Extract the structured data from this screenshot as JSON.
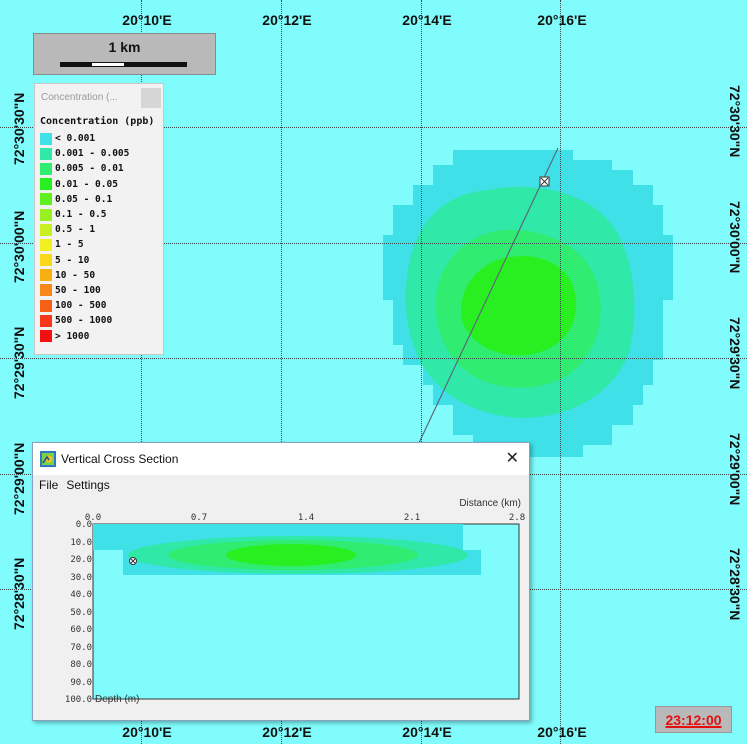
{
  "map": {
    "lon_labels": [
      "20°10'E",
      "20°12'E",
      "20°14'E",
      "20°16'E"
    ],
    "lat_labels": [
      "72°30'30\"N",
      "72°30'00\"N",
      "72°29'30\"N",
      "72°29'00\"N",
      "72°28'30\"N"
    ],
    "background_color": "#80fcfc"
  },
  "scale_bar": {
    "label": "1 km"
  },
  "legend": {
    "title": "Concentration (...",
    "header": "Concentration (ppb)",
    "items": [
      {
        "label": "< 0.001",
        "color": "#40e0e8"
      },
      {
        "label": "0.001 - 0.005",
        "color": "#30e8a8"
      },
      {
        "label": "0.005 - 0.01",
        "color": "#30ec70"
      },
      {
        "label": "0.01 - 0.05",
        "color": "#28f020"
      },
      {
        "label": "0.05 - 0.1",
        "color": "#60f020"
      },
      {
        "label": "0.1 - 0.5",
        "color": "#98f020"
      },
      {
        "label": "0.5 - 1",
        "color": "#c8f020"
      },
      {
        "label": "1 - 5",
        "color": "#f0f020"
      },
      {
        "label": "5 - 10",
        "color": "#f8d818"
      },
      {
        "label": "10 - 50",
        "color": "#f8b010"
      },
      {
        "label": "50 - 100",
        "color": "#f88818"
      },
      {
        "label": "100 - 500",
        "color": "#f86018"
      },
      {
        "label": "500 - 1000",
        "color": "#f83818"
      },
      {
        "label": "> 1000",
        "color": "#f81010"
      }
    ]
  },
  "cross_section": {
    "title": "Vertical Cross Section",
    "close_symbol": "✕",
    "menu": [
      "File",
      "Settings"
    ],
    "distance_axis_label": "Distance (km)",
    "distance_ticks": [
      "0.0",
      "0.7",
      "1.4",
      "2.1",
      "2.8"
    ],
    "depth_axis_label": "Depth (m)",
    "depth_ticks": [
      "0.0",
      "10.0",
      "20.0",
      "30.0",
      "40.0",
      "50.0",
      "60.0",
      "70.0",
      "80.0",
      "90.0",
      "100.0"
    ]
  },
  "timestamp": "23:12:00"
}
